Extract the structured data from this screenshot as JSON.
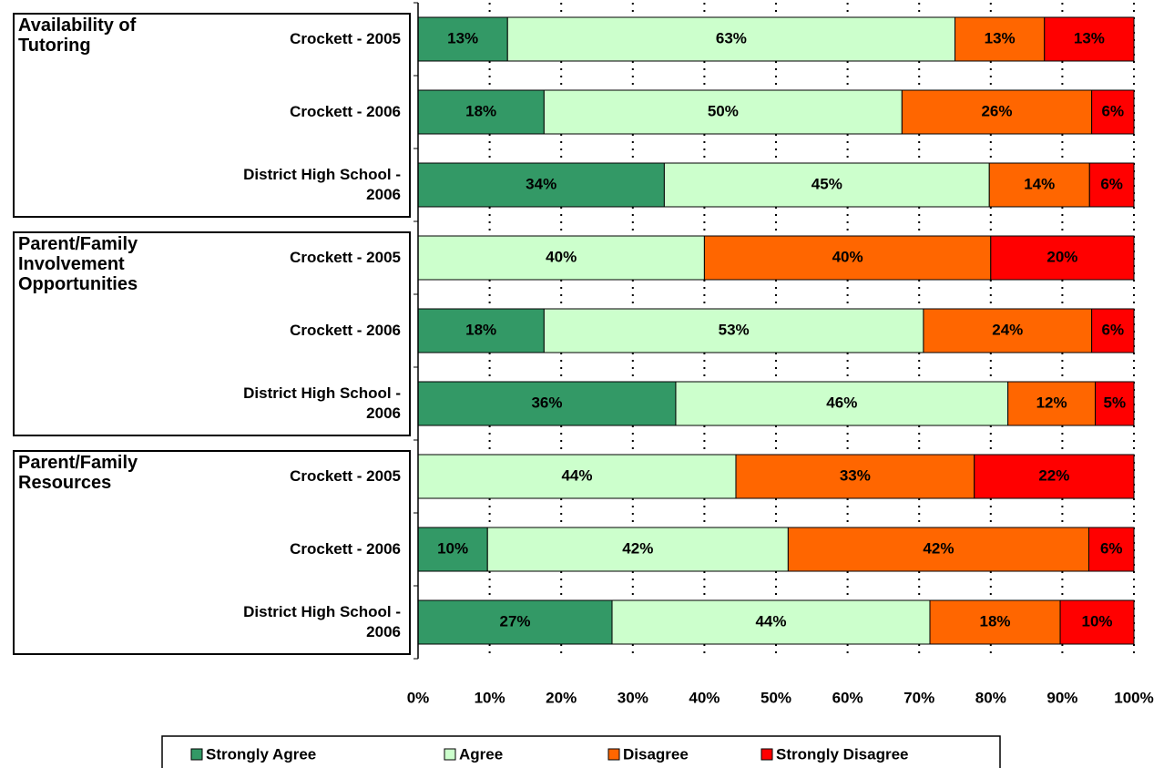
{
  "chart_data": {
    "type": "stacked-bar-horizontal",
    "groups": [
      "Availability of Tutoring",
      "Parent/Family Involvement Opportunities",
      "Parent/Family Resources"
    ],
    "categories": [
      "Crockett - 2005",
      "Crockett - 2006",
      "District High School - 2006",
      "Crockett - 2005",
      "Crockett - 2006",
      "District High School - 2006",
      "Crockett - 2005",
      "Crockett - 2006",
      "District High School - 2006"
    ],
    "series": [
      {
        "name": "Strongly Agree",
        "color": "#339966",
        "values": [
          12.5,
          17.6,
          34.4,
          0,
          17.6,
          36.0,
          0,
          9.7,
          27.1
        ],
        "value_labels": [
          "13%",
          "18%",
          "34%",
          null,
          "18%",
          "36%",
          null,
          "10%",
          "27%"
        ]
      },
      {
        "name": "Agree",
        "color": "#ccffcc",
        "values": [
          62.5,
          50.0,
          45.4,
          40,
          53.0,
          46.4,
          44.4,
          42.0,
          44.4
        ],
        "value_labels": [
          "63%",
          "50%",
          "45%",
          "40%",
          "53%",
          "46%",
          "44%",
          "42%",
          "44%"
        ]
      },
      {
        "name": "Disagree",
        "color": "#ff6600",
        "values": [
          12.5,
          26.5,
          14.0,
          40,
          23.5,
          12.2,
          33.3,
          42.0,
          18.2
        ],
        "value_labels": [
          "13%",
          "26%",
          "14%",
          "40%",
          "24%",
          "12%",
          "33%",
          "42%",
          "18%"
        ]
      },
      {
        "name": "Strongly Disagree",
        "color": "#ff0000",
        "values": [
          12.5,
          5.9,
          6.2,
          20,
          5.9,
          5.4,
          22.3,
          6.3,
          10.3
        ],
        "value_labels": [
          "13%",
          "6%",
          "6%",
          "20%",
          "6%",
          "5%",
          "22%",
          "6%",
          "10%"
        ]
      }
    ],
    "xlim": [
      0,
      100
    ],
    "xticks": [
      {
        "value": 0,
        "label": "0%"
      },
      {
        "value": 10,
        "label": "10%"
      },
      {
        "value": 20,
        "label": "20%"
      },
      {
        "value": 30,
        "label": "30%"
      },
      {
        "value": 40,
        "label": "40%"
      },
      {
        "value": 50,
        "label": "50%"
      },
      {
        "value": 60,
        "label": "60%"
      },
      {
        "value": 70,
        "label": "70%"
      },
      {
        "value": 80,
        "label": "80%"
      },
      {
        "value": 90,
        "label": "90%"
      },
      {
        "value": 100,
        "label": "100%"
      }
    ],
    "grid": true,
    "legend": "bottom"
  }
}
